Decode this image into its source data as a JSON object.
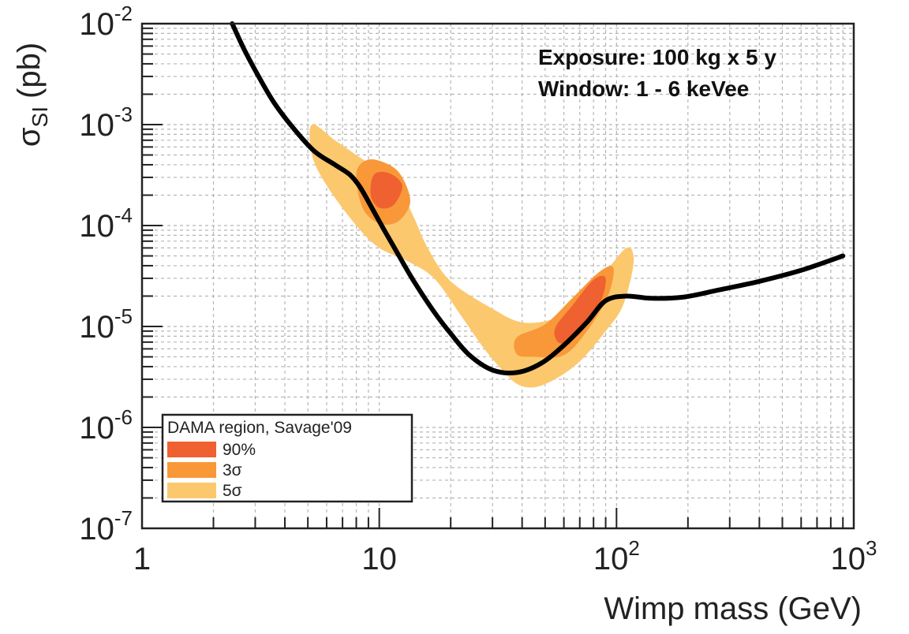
{
  "chart_data": {
    "type": "line",
    "title": "",
    "xlabel": "Wimp mass (GeV)",
    "ylabel": {
      "symbol": "σ",
      "subscript": "SI",
      "unit": "(pb)"
    },
    "xscale": "log",
    "yscale": "log",
    "xlim": [
      1,
      1000
    ],
    "ylim": [
      1e-07,
      0.01
    ],
    "grid": true,
    "x_ticks": [
      {
        "value": 1,
        "base": "1",
        "exp": ""
      },
      {
        "value": 10,
        "base": "10",
        "exp": ""
      },
      {
        "value": 100,
        "base": "10",
        "exp": "2"
      },
      {
        "value": 1000,
        "base": "10",
        "exp": "3"
      }
    ],
    "y_ticks": [
      {
        "value": 0.01,
        "base": "10",
        "exp": "-2"
      },
      {
        "value": 0.001,
        "base": "10",
        "exp": "-3"
      },
      {
        "value": 0.0001,
        "base": "10",
        "exp": "-4"
      },
      {
        "value": 1e-05,
        "base": "10",
        "exp": "-5"
      },
      {
        "value": 1e-06,
        "base": "10",
        "exp": "-6"
      },
      {
        "value": 1e-07,
        "base": "10",
        "exp": "-7"
      }
    ],
    "annotations": [
      "Exposure: 100 kg x 5 y",
      "Window: 1 - 6 keVee"
    ],
    "series": [
      {
        "color": "#000000",
        "points": [
          [
            2.4,
            0.01
          ],
          [
            2.7,
            0.0055
          ],
          [
            3.1,
            0.003
          ],
          [
            3.6,
            0.00165
          ],
          [
            4.3,
            0.00095
          ],
          [
            5.3,
            0.00055
          ],
          [
            6.5,
            0.0004
          ],
          [
            7.5,
            0.00032
          ],
          [
            8.3,
            0.00024
          ],
          [
            9.3,
            0.00015
          ],
          [
            10.5,
            9e-05
          ],
          [
            12,
            5.2e-05
          ],
          [
            14,
            2.8e-05
          ],
          [
            17,
            1.4e-05
          ],
          [
            20,
            8.5e-06
          ],
          [
            24,
            5.2e-06
          ],
          [
            30,
            3.7e-06
          ],
          [
            38,
            3.5e-06
          ],
          [
            48,
            4.3e-06
          ],
          [
            60,
            6.5e-06
          ],
          [
            75,
            1.1e-05
          ],
          [
            90,
            1.8e-05
          ],
          [
            110,
            2e-05
          ],
          [
            140,
            1.9e-05
          ],
          [
            190,
            1.95e-05
          ],
          [
            270,
            2.3e-05
          ],
          [
            400,
            2.8e-05
          ],
          [
            600,
            3.6e-05
          ],
          [
            900,
            5e-05
          ]
        ]
      }
    ],
    "dama_regions": {
      "title": "DAMA region, Savage'09",
      "legend_position": "bottom-left",
      "entries": [
        {
          "label": "5σ",
          "color": "#fcc86e",
          "polygons": [
            [
              [
                5.2,
                0.001
              ],
              [
                6.5,
                0.0007
              ],
              [
                8,
                0.0005
              ],
              [
                10,
                0.00035
              ],
              [
                12,
                0.00025
              ],
              [
                14,
                0.00012
              ],
              [
                16,
                6e-05
              ],
              [
                20,
                2.8e-05
              ],
              [
                30,
                1.5e-05
              ],
              [
                40,
                1.1e-05
              ],
              [
                55,
                1.2e-05
              ],
              [
                70,
                1.8e-05
              ],
              [
                90,
                3.5e-05
              ],
              [
                110,
                6e-05
              ],
              [
                118,
                5e-05
              ],
              [
                115,
                3e-05
              ],
              [
                105,
                1.5e-05
              ],
              [
                90,
                9e-06
              ],
              [
                70,
                4.5e-06
              ],
              [
                55,
                3e-06
              ],
              [
                45,
                2.5e-06
              ],
              [
                38,
                2.7e-06
              ],
              [
                32,
                4e-06
              ],
              [
                27,
                6.5e-06
              ],
              [
                22,
                1.3e-05
              ],
              [
                17,
                3e-05
              ],
              [
                13,
                4.5e-05
              ],
              [
                10,
                6e-05
              ],
              [
                8,
                0.0001
              ],
              [
                6,
                0.00025
              ],
              [
                5.2,
                0.0005
              ]
            ]
          ]
        },
        {
          "label": "3σ",
          "color": "#f99839",
          "polygons": [
            [
              [
                8,
                0.00033
              ],
              [
                9,
                0.00045
              ],
              [
                11,
                0.0004
              ],
              [
                12.5,
                0.0003
              ],
              [
                13.5,
                0.00017
              ],
              [
                12,
                0.00011
              ],
              [
                10,
                0.000105
              ],
              [
                8.5,
                0.00015
              ]
            ],
            [
              [
                38,
                7.8e-06
              ],
              [
                50,
                1.05e-05
              ],
              [
                65,
                1.9e-05
              ],
              [
                85,
                3.5e-05
              ],
              [
                97,
                3.8e-05
              ],
              [
                92,
                2e-05
              ],
              [
                75,
                9e-06
              ],
              [
                60,
                5.2e-06
              ],
              [
                45,
                5e-06
              ],
              [
                38,
                5.3e-06
              ]
            ]
          ]
        },
        {
          "label": "90%",
          "color": "#ef6130",
          "polygons": [
            [
              [
                9.5,
                0.00032
              ],
              [
                11,
                0.00033
              ],
              [
                12.5,
                0.00025
              ],
              [
                11.5,
                0.00016
              ],
              [
                10,
                0.00015
              ],
              [
                9.2,
                0.0002
              ]
            ],
            [
              [
                55,
                9.5e-06
              ],
              [
                65,
                1.6e-05
              ],
              [
                80,
                2.9e-05
              ],
              [
                90,
                3e-05
              ],
              [
                85,
                1.7e-05
              ],
              [
                70,
                8.5e-06
              ],
              [
                58,
                6.8e-06
              ]
            ]
          ]
        }
      ]
    }
  }
}
